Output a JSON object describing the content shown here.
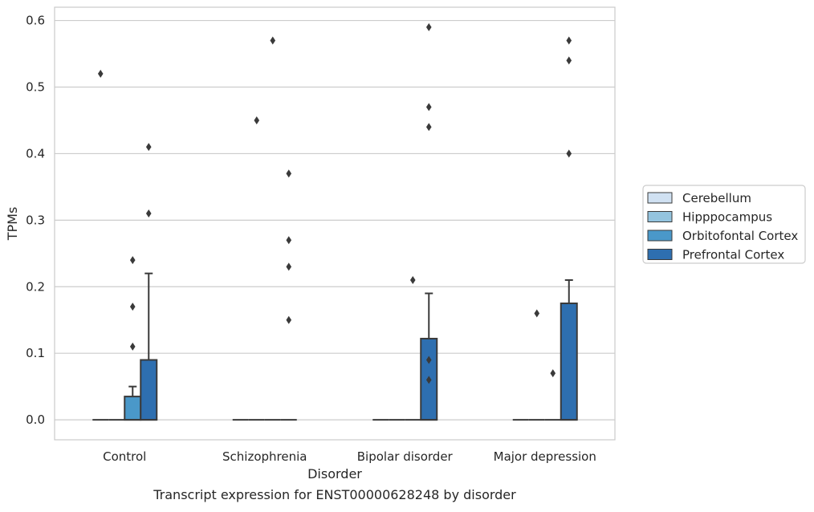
{
  "chart_data": {
    "type": "box",
    "title": "",
    "caption": "Transcript expression for ENST00000628248 by disorder",
    "xlabel": "Disorder",
    "ylabel": "TPMs",
    "ylim": [
      -0.03,
      0.62
    ],
    "yticks": [
      0.0,
      0.1,
      0.2,
      0.3,
      0.4,
      0.5,
      0.6
    ],
    "ytick_labels": [
      "0.0",
      "0.1",
      "0.2",
      "0.3",
      "0.4",
      "0.5",
      "0.6"
    ],
    "grid": "horizontal",
    "legend_position": "right",
    "categories": [
      "Control",
      "Schizophrenia",
      "Bipolar disorder",
      "Major depression"
    ],
    "series": [
      {
        "name": "Cerebellum",
        "color": "#d0e1f2",
        "boxes": [
          {
            "q1": 0,
            "median": 0,
            "q3": 0,
            "whisker_low": 0,
            "whisker_high": 0,
            "outliers": [
              0.52
            ]
          },
          {
            "q1": 0,
            "median": 0,
            "q3": 0,
            "whisker_low": 0,
            "whisker_high": 0,
            "outliers": []
          },
          {
            "q1": 0,
            "median": 0,
            "q3": 0,
            "whisker_low": 0,
            "whisker_high": 0,
            "outliers": []
          },
          {
            "q1": 0,
            "median": 0,
            "q3": 0,
            "whisker_low": 0,
            "whisker_high": 0,
            "outliers": []
          }
        ]
      },
      {
        "name": "Hipppocampus",
        "color": "#94c4df",
        "boxes": [
          {
            "q1": 0,
            "median": 0,
            "q3": 0,
            "whisker_low": 0,
            "whisker_high": 0,
            "outliers": []
          },
          {
            "q1": 0,
            "median": 0,
            "q3": 0,
            "whisker_low": 0,
            "whisker_high": 0,
            "outliers": [
              0.45
            ]
          },
          {
            "q1": 0,
            "median": 0,
            "q3": 0,
            "whisker_low": 0,
            "whisker_high": 0,
            "outliers": []
          },
          {
            "q1": 0,
            "median": 0,
            "q3": 0,
            "whisker_low": 0,
            "whisker_high": 0,
            "outliers": [
              0.16
            ]
          }
        ]
      },
      {
        "name": "Orbitofontal Cortex",
        "color": "#4a98c9",
        "boxes": [
          {
            "q1": 0,
            "median": 0,
            "q3": 0.035,
            "whisker_low": 0,
            "whisker_high": 0.05,
            "outliers": [
              0.11,
              0.17,
              0.24
            ]
          },
          {
            "q1": 0,
            "median": 0,
            "q3": 0,
            "whisker_low": 0,
            "whisker_high": 0,
            "outliers": [
              0.57
            ]
          },
          {
            "q1": 0,
            "median": 0,
            "q3": 0,
            "whisker_low": 0,
            "whisker_high": 0,
            "outliers": [
              0.21
            ]
          },
          {
            "q1": 0,
            "median": 0,
            "q3": 0,
            "whisker_low": 0,
            "whisker_high": 0,
            "outliers": [
              0.07
            ]
          }
        ]
      },
      {
        "name": "Prefrontal Cortex",
        "color": "#2e6fb0",
        "boxes": [
          {
            "q1": 0,
            "median": 0,
            "q3": 0.09,
            "whisker_low": 0,
            "whisker_high": 0.22,
            "outliers": [
              0.31,
              0.41
            ]
          },
          {
            "q1": 0,
            "median": 0,
            "q3": 0,
            "whisker_low": 0,
            "whisker_high": 0,
            "outliers": [
              0.15,
              0.23,
              0.27,
              0.37
            ]
          },
          {
            "q1": 0,
            "median": 0,
            "q3": 0,
            "whisker_low": 0,
            "whisker_high": 0,
            "outliers": [
              0.06,
              0.09,
              0.44
            ]
          },
          {
            "q1": 0,
            "median": 0,
            "q3": 0.125,
            "whisker_low": 0,
            "whisker_high": 0.16,
            "outliers": [
              0.4,
              0.57
            ]
          }
        ]
      }
    ],
    "extra_boxes_note_free": [
      {
        "category": "Bipolar disorder",
        "series": "Prefrontal Cortex",
        "q1": 0,
        "median": 0,
        "q3": 0.122,
        "whisker_low": 0,
        "whisker_high": 0.19,
        "outliers": [
          0.47,
          0.59
        ]
      },
      {
        "category": "Major depression",
        "series": "Prefrontal Cortex",
        "q1": 0,
        "median": 0,
        "q3": 0.175,
        "whisker_low": 0,
        "whisker_high": 0.21,
        "outliers": [
          0.54
        ]
      }
    ]
  }
}
